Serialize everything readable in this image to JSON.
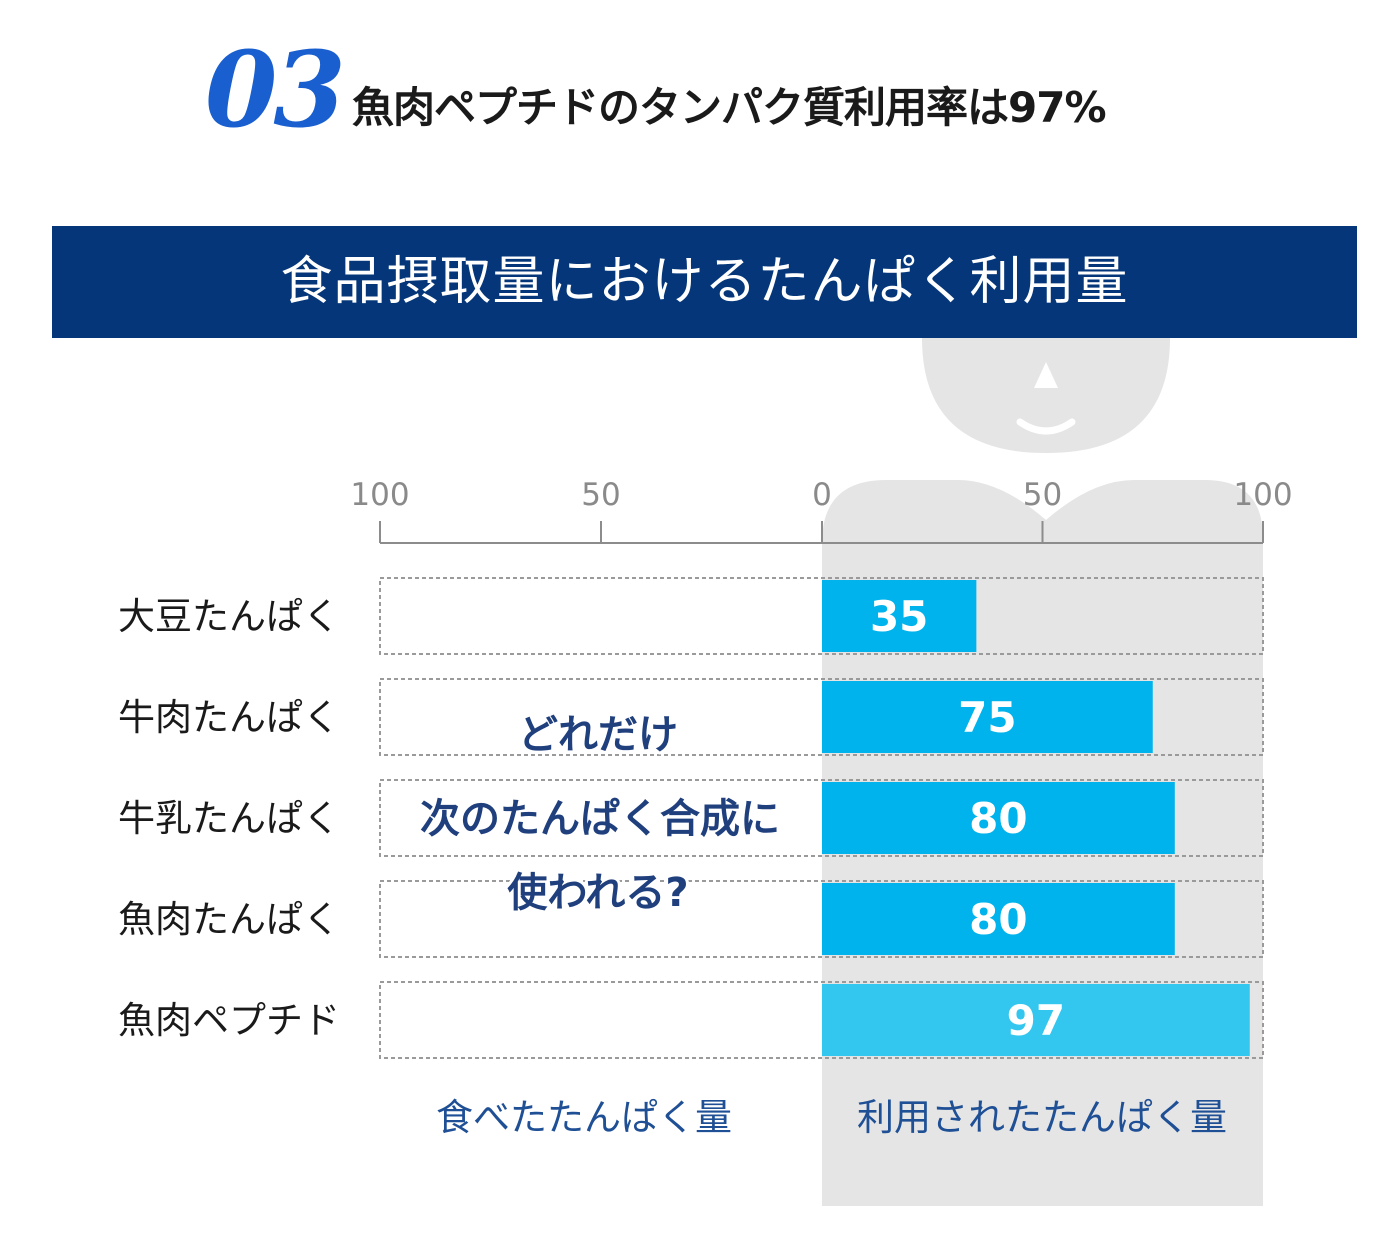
{
  "heading": {
    "number": "03",
    "text": "魚肉ペプチドのタンパク質利用率は97%"
  },
  "banner": {
    "title": "食品摂取量におけるたんぱく利用量"
  },
  "colors": {
    "banner_bg": "#043679",
    "heading_number": "#1a5fcf",
    "bar": "#00b3ec",
    "bar_highlight": "#33c6ef",
    "silhouette": "#e5e5e5",
    "annotation_text": "#1f3f7d"
  },
  "chart_data": {
    "type": "bar",
    "orientation": "horizontal",
    "categories": [
      "大豆たんぱく",
      "牛肉たんぱく",
      "牛乳たんぱく",
      "魚肉たんぱく",
      "魚肉ペプチド"
    ],
    "series": [
      {
        "values": [
          35,
          75,
          80,
          80,
          97
        ]
      }
    ],
    "data_labels": [
      "35",
      "75",
      "80",
      "80",
      "97"
    ],
    "left_ticks": [
      "100",
      "50",
      "0"
    ],
    "right_ticks": [
      "50",
      "100"
    ],
    "xlim_left": [
      100,
      0
    ],
    "xlim_right": [
      0,
      100
    ],
    "left_label": "食べたたんぱく量",
    "right_label": "利用されたたんぱく量",
    "annotation": [
      "どれだけ",
      "次のたんぱく合成に",
      "使われる?"
    ],
    "highlight_category": "魚肉ペプチド",
    "grid": false
  }
}
